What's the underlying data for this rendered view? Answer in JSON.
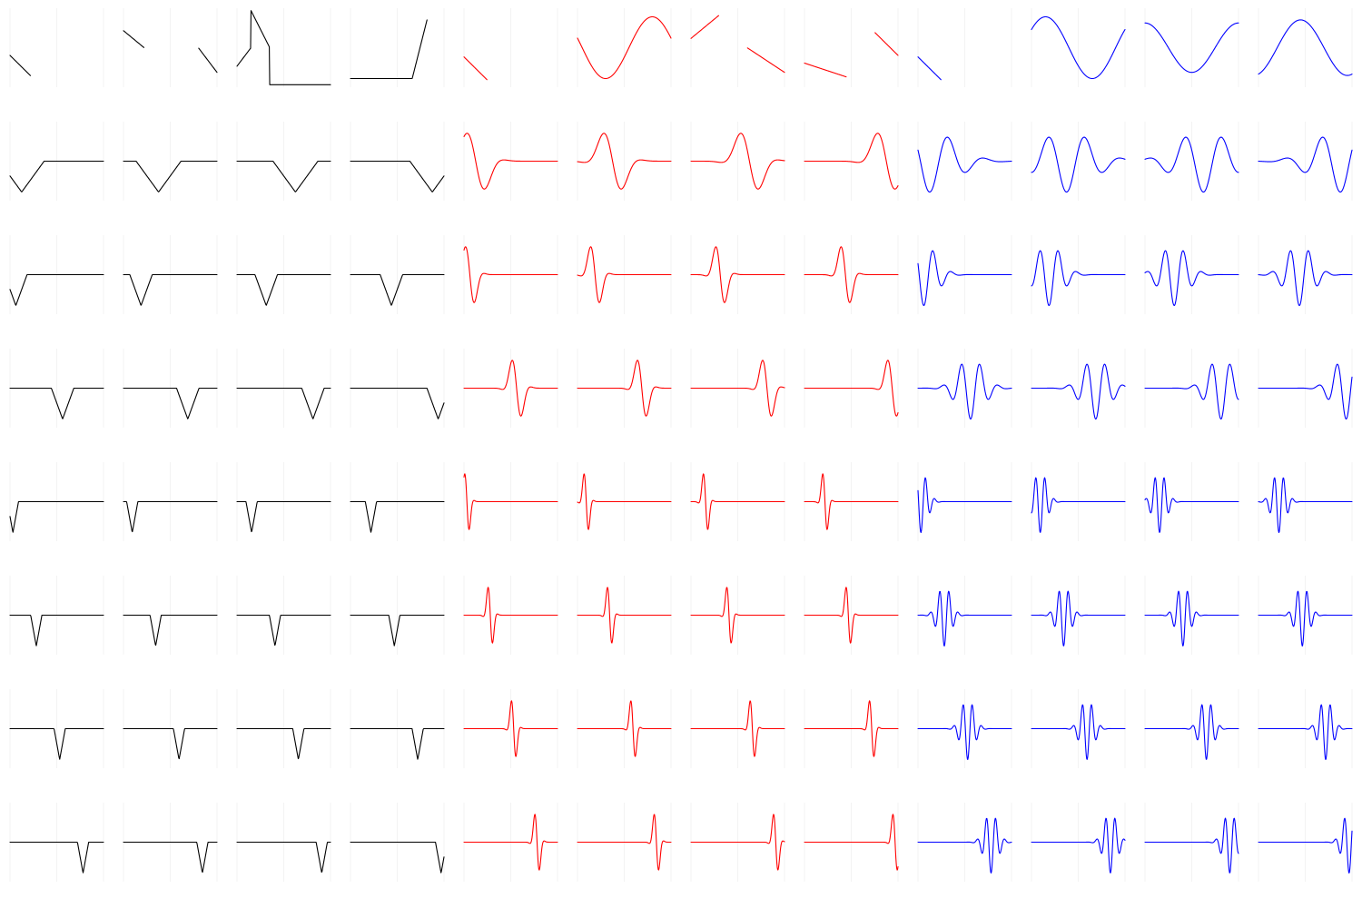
{
  "chart_data": {
    "type": "line",
    "layout": {
      "rows": 8,
      "cols": 12
    },
    "colors": {
      "haar_block": "#000000",
      "daubechies_block": "#ff0000",
      "meyer_block": "#0000ff",
      "grid": "#ebebeb",
      "background": "#ffffff"
    },
    "grid": true,
    "axes_visible": false,
    "panel_x_domain": [
      0,
      1
    ],
    "panels_per_block": 32,
    "blocks": [
      {
        "id": "haar_block",
        "color_key": "haar_block",
        "kind": "triangular_hat",
        "note_levels": [
          {
            "row": 0,
            "count": 4,
            "scale": 1,
            "periodic": true
          },
          {
            "row": 1,
            "count": 4,
            "scale": 4
          },
          {
            "row": 2,
            "count": 8,
            "scale": 8
          },
          {
            "row": 4,
            "count": 16,
            "scale": 16
          }
        ]
      },
      {
        "id": "daubechies_block",
        "color_key": "daubechies_block",
        "kind": "compact_wavelet",
        "note_levels": [
          {
            "row": 0,
            "count": 4,
            "scale": 1,
            "periodic": true
          },
          {
            "row": 1,
            "count": 4,
            "scale": 4
          },
          {
            "row": 2,
            "count": 8,
            "scale": 8
          },
          {
            "row": 4,
            "count": 16,
            "scale": 16
          }
        ]
      },
      {
        "id": "meyer_block",
        "color_key": "meyer_block",
        "kind": "oscillating_wavelet",
        "note_levels": [
          {
            "row": 0,
            "count": 4,
            "scale": 1,
            "periodic": true
          },
          {
            "row": 1,
            "count": 4,
            "scale": 4
          },
          {
            "row": 2,
            "count": 8,
            "scale": 8
          },
          {
            "row": 4,
            "count": 16,
            "scale": 16
          }
        ]
      }
    ]
  }
}
